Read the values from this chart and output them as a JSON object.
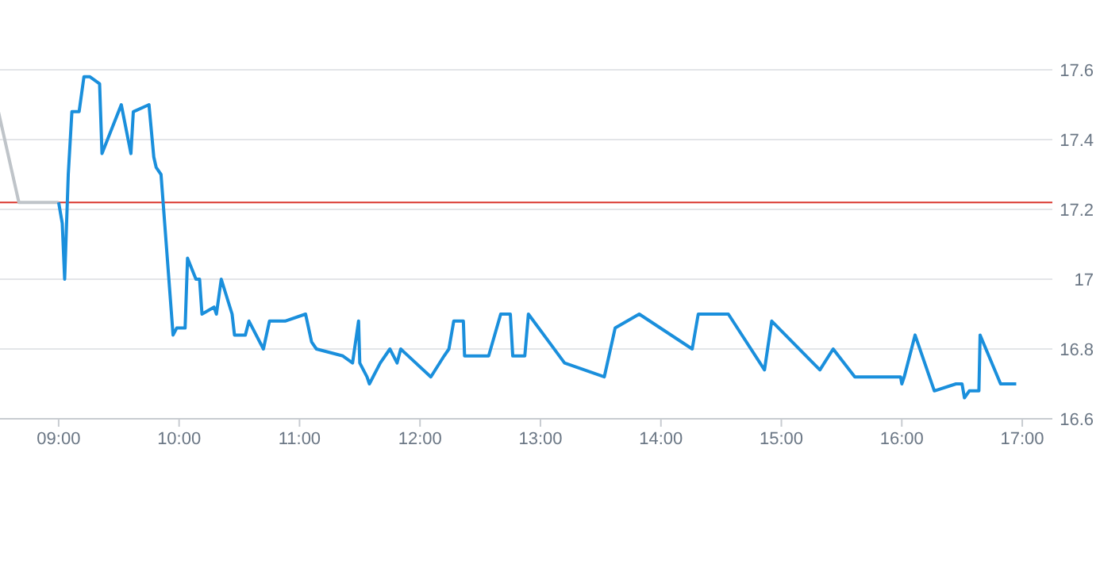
{
  "chart_data": {
    "type": "line",
    "xlim": [
      8.5,
      17.25
    ],
    "ylim": [
      16.6,
      17.6
    ],
    "xticks": [
      {
        "value": 9,
        "label": "09:00"
      },
      {
        "value": 10,
        "label": "10:00"
      },
      {
        "value": 11,
        "label": "11:00"
      },
      {
        "value": 12,
        "label": "12:00"
      },
      {
        "value": 13,
        "label": "13:00"
      },
      {
        "value": 14,
        "label": "14:00"
      },
      {
        "value": 15,
        "label": "15:00"
      },
      {
        "value": 16,
        "label": "16:00"
      },
      {
        "value": 17,
        "label": "17:00"
      }
    ],
    "yticks": [
      16.6,
      16.8,
      {
        "value": 17,
        "label": "17"
      },
      17.2,
      17.4,
      17.6
    ],
    "grid": "y",
    "marker": "none",
    "line_style": "solid",
    "ref_lines": [
      {
        "axis": "y",
        "value": 17.22,
        "label": null,
        "color": "#d9372e"
      }
    ],
    "series": [
      {
        "color": "#bfc4c9",
        "x": [
          8.5,
          8.67,
          9.0
        ],
        "values": [
          17.48,
          17.22,
          17.22
        ]
      },
      {
        "color": "#1a8fdc",
        "x": [
          9.0,
          9.03,
          9.05,
          9.08,
          9.11,
          9.17,
          9.21,
          9.26,
          9.34,
          9.36,
          9.52,
          9.6,
          9.62,
          9.75,
          9.79,
          9.81,
          9.85,
          9.95,
          9.98,
          10.05,
          10.07,
          10.14,
          10.17,
          10.19,
          10.29,
          10.31,
          10.35,
          10.44,
          10.46,
          10.55,
          10.58,
          10.7,
          10.75,
          10.88,
          11.05,
          11.1,
          11.14,
          11.36,
          11.44,
          11.49,
          11.5,
          11.56,
          11.58,
          11.67,
          11.75,
          11.81,
          11.84,
          12.09,
          12.2,
          12.24,
          12.28,
          12.36,
          12.37,
          12.57,
          12.67,
          12.75,
          12.77,
          12.87,
          12.9,
          13.2,
          13.53,
          13.62,
          13.82,
          14.26,
          14.31,
          14.56,
          14.86,
          14.92,
          15.32,
          15.43,
          15.61,
          15.99,
          16.0,
          16.02,
          16.11,
          16.27,
          16.45,
          16.5,
          16.52,
          16.56,
          16.64,
          16.65,
          16.82,
          16.95
        ],
        "values": [
          17.22,
          17.16,
          17.0,
          17.3,
          17.48,
          17.48,
          17.58,
          17.58,
          17.56,
          17.36,
          17.5,
          17.36,
          17.48,
          17.5,
          17.35,
          17.32,
          17.3,
          16.84,
          16.86,
          16.86,
          17.06,
          17.0,
          17.0,
          16.9,
          16.92,
          16.9,
          17.0,
          16.9,
          16.84,
          16.84,
          16.88,
          16.8,
          16.88,
          16.88,
          16.9,
          16.82,
          16.8,
          16.78,
          16.76,
          16.88,
          16.76,
          16.72,
          16.7,
          16.76,
          16.8,
          16.76,
          16.8,
          16.72,
          16.78,
          16.8,
          16.88,
          16.88,
          16.78,
          16.78,
          16.9,
          16.9,
          16.78,
          16.78,
          16.9,
          16.76,
          16.72,
          16.86,
          16.9,
          16.8,
          16.9,
          16.9,
          16.74,
          16.88,
          16.74,
          16.8,
          16.72,
          16.72,
          16.7,
          16.72,
          16.84,
          16.68,
          16.7,
          16.7,
          16.66,
          16.68,
          16.68,
          16.84,
          16.7,
          16.7
        ]
      }
    ]
  }
}
